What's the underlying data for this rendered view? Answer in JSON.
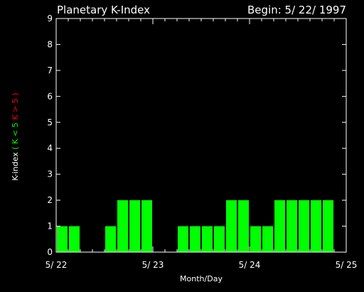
{
  "chart_data": {
    "type": "bar",
    "title": "Planetary K-Index",
    "subtitle": "Begin: 5/ 22/ 1997",
    "xlabel": "Month/Day",
    "ylabel_parts": [
      {
        "text": "K-index",
        "color": "#ffffff"
      },
      {
        "text": "( K < 5",
        "color": "#00ff00"
      },
      {
        "text": "K > 5 )",
        "color": "#ff0000"
      }
    ],
    "ylim": [
      0,
      9
    ],
    "y_ticks": [
      "0",
      "1",
      "2",
      "3",
      "4",
      "5",
      "6",
      "7",
      "8",
      "9"
    ],
    "x_ticks": [
      "5/ 22",
      "5/ 23",
      "5/ 24",
      "5/ 25"
    ],
    "bar_color": "#00ff00",
    "axis_color": "#ffffff",
    "background": "#000000",
    "interval_hours": 3,
    "values": [
      1,
      1,
      0,
      0,
      1,
      2,
      2,
      2,
      0,
      0,
      1,
      1,
      1,
      1,
      2,
      2,
      1,
      1,
      2,
      2,
      2,
      2,
      2,
      0
    ]
  }
}
